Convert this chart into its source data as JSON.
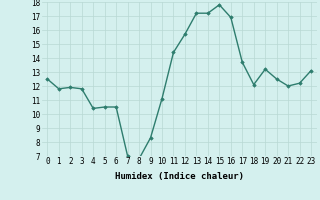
{
  "x": [
    0,
    1,
    2,
    3,
    4,
    5,
    6,
    7,
    8,
    9,
    10,
    11,
    12,
    13,
    14,
    15,
    16,
    17,
    18,
    19,
    20,
    21,
    22,
    23
  ],
  "y": [
    12.5,
    11.8,
    11.9,
    11.8,
    10.4,
    10.5,
    10.5,
    7.0,
    6.8,
    8.3,
    11.1,
    14.4,
    15.7,
    17.2,
    17.2,
    17.8,
    16.9,
    13.7,
    12.1,
    13.2,
    12.5,
    12.0,
    12.2,
    13.1
  ],
  "line_color": "#2e7d6e",
  "marker": "D",
  "marker_size": 1.8,
  "bg_color": "#d4f0ee",
  "grid_color": "#b8d8d4",
  "xlabel": "Humidex (Indice chaleur)",
  "xlim": [
    -0.5,
    23.5
  ],
  "ylim": [
    7,
    18
  ],
  "yticks": [
    7,
    8,
    9,
    10,
    11,
    12,
    13,
    14,
    15,
    16,
    17,
    18
  ],
  "xticks": [
    0,
    1,
    2,
    3,
    4,
    5,
    6,
    7,
    8,
    9,
    10,
    11,
    12,
    13,
    14,
    15,
    16,
    17,
    18,
    19,
    20,
    21,
    22,
    23
  ],
  "xlabel_fontsize": 6.5,
  "tick_fontsize": 5.5,
  "linewidth": 1.0
}
